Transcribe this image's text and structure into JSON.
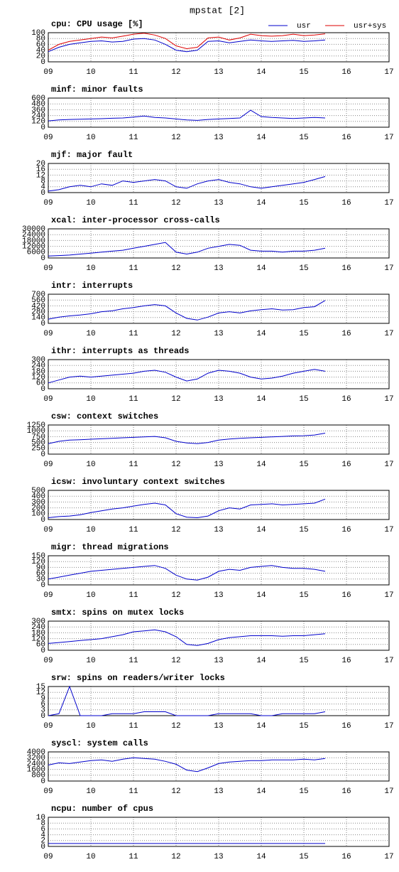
{
  "title": "mpstat [2]",
  "chart_data": [
    {
      "type": "line",
      "title": "cpu: CPU usage [%]",
      "legend": "top-right",
      "grid": true,
      "x": [
        9,
        9.25,
        9.5,
        9.75,
        10,
        10.25,
        10.5,
        10.75,
        11,
        11.25,
        11.5,
        11.75,
        12,
        12.25,
        12.5,
        12.75,
        13,
        13.25,
        13.5,
        13.75,
        14,
        14.25,
        14.5,
        14.75,
        15,
        15.25,
        15.5
      ],
      "series": [
        {
          "name": "usr",
          "color": "#0000cc",
          "values": [
            35,
            50,
            60,
            65,
            70,
            72,
            68,
            70,
            78,
            80,
            75,
            60,
            40,
            35,
            40,
            70,
            72,
            65,
            70,
            75,
            72,
            70,
            72,
            74,
            70,
            72,
            75
          ]
        },
        {
          "name": "usr+sys",
          "color": "#dd0000",
          "values": [
            40,
            60,
            70,
            75,
            80,
            85,
            82,
            88,
            95,
            98,
            92,
            80,
            55,
            45,
            50,
            82,
            85,
            75,
            82,
            95,
            90,
            88,
            90,
            95,
            90,
            92,
            96
          ]
        }
      ],
      "xlim": [
        9,
        17
      ],
      "xticks": [
        {
          "value": 9,
          "label": "09"
        },
        10,
        11,
        12,
        13,
        14,
        15,
        16,
        17
      ],
      "ylim": [
        0,
        100
      ],
      "yticks": [
        0,
        20,
        40,
        60,
        80,
        100
      ]
    },
    {
      "type": "line",
      "title": "minf: minor faults",
      "grid": true,
      "x": [
        9,
        9.25,
        9.5,
        9.75,
        10,
        10.25,
        10.5,
        10.75,
        11,
        11.25,
        11.5,
        11.75,
        12,
        12.25,
        12.5,
        12.75,
        13,
        13.25,
        13.5,
        13.75,
        14,
        14.25,
        14.5,
        14.75,
        15,
        15.25,
        15.5
      ],
      "series": [
        {
          "color": "#0000cc",
          "values": [
            130,
            150,
            160,
            165,
            170,
            175,
            185,
            190,
            210,
            230,
            200,
            190,
            170,
            150,
            140,
            160,
            170,
            180,
            190,
            350,
            220,
            200,
            190,
            180,
            190,
            200,
            190
          ]
        }
      ],
      "xlim": [
        9,
        17
      ],
      "xticks": [
        {
          "value": 9,
          "label": "09"
        },
        10,
        11,
        12,
        13,
        14,
        15,
        16,
        17
      ],
      "ylim": [
        0,
        600
      ],
      "yticks": [
        0,
        120,
        240,
        360,
        480,
        600
      ]
    },
    {
      "type": "line",
      "title": "mjf: major fault",
      "grid": true,
      "x": [
        9,
        9.25,
        9.5,
        9.75,
        10,
        10.25,
        10.5,
        10.75,
        11,
        11.25,
        11.5,
        11.75,
        12,
        12.25,
        12.5,
        12.75,
        13,
        13.25,
        13.5,
        13.75,
        14,
        14.25,
        14.5,
        14.75,
        15,
        15.25,
        15.5
      ],
      "series": [
        {
          "color": "#0000cc",
          "values": [
            1,
            2,
            4,
            5,
            4,
            6,
            5,
            8,
            7,
            8,
            9,
            8,
            4,
            3,
            6,
            8,
            9,
            7,
            6,
            4,
            3,
            4,
            5,
            6,
            7,
            9,
            11
          ]
        }
      ],
      "xlim": [
        9,
        17
      ],
      "xticks": [
        {
          "value": 9,
          "label": "09"
        },
        10,
        11,
        12,
        13,
        14,
        15,
        16,
        17
      ],
      "ylim": [
        0,
        20
      ],
      "yticks": [
        0,
        4,
        8,
        12,
        16,
        20
      ]
    },
    {
      "type": "line",
      "title": "xcal: inter-processor cross-calls",
      "grid": true,
      "x": [
        9,
        9.25,
        9.5,
        9.75,
        10,
        10.25,
        10.5,
        10.75,
        11,
        11.25,
        11.5,
        11.75,
        12,
        12.25,
        12.5,
        12.75,
        13,
        13.25,
        13.5,
        13.75,
        14,
        14.25,
        14.5,
        14.75,
        15,
        15.25,
        15.5
      ],
      "series": [
        {
          "color": "#0000cc",
          "values": [
            2000,
            2500,
            3000,
            4000,
            5000,
            6000,
            7000,
            8000,
            10000,
            12000,
            14000,
            16000,
            6000,
            4000,
            6000,
            10000,
            12000,
            14000,
            13000,
            8000,
            7000,
            7000,
            6000,
            7000,
            7000,
            8000,
            10000
          ]
        }
      ],
      "xlim": [
        9,
        17
      ],
      "xticks": [
        {
          "value": 9,
          "label": "09"
        },
        10,
        11,
        12,
        13,
        14,
        15,
        16,
        17
      ],
      "ylim": [
        0,
        30000
      ],
      "yticks": [
        0,
        6000,
        12000,
        18000,
        24000,
        30000
      ]
    },
    {
      "type": "line",
      "title": "intr: interrupts",
      "grid": true,
      "x": [
        9,
        9.25,
        9.5,
        9.75,
        10,
        10.25,
        10.5,
        10.75,
        11,
        11.25,
        11.5,
        11.75,
        12,
        12.25,
        12.5,
        12.75,
        13,
        13.25,
        13.5,
        13.75,
        14,
        14.25,
        14.5,
        14.75,
        15,
        15.25,
        15.5
      ],
      "series": [
        {
          "color": "#0000cc",
          "values": [
            100,
            150,
            180,
            200,
            230,
            280,
            300,
            350,
            380,
            420,
            450,
            420,
            250,
            120,
            80,
            150,
            250,
            280,
            250,
            300,
            330,
            350,
            320,
            330,
            380,
            400,
            550
          ]
        }
      ],
      "xlim": [
        9,
        17
      ],
      "xticks": [
        {
          "value": 9,
          "label": "09"
        },
        10,
        11,
        12,
        13,
        14,
        15,
        16,
        17
      ],
      "ylim": [
        0,
        700
      ],
      "yticks": [
        0,
        140,
        280,
        420,
        560,
        700
      ]
    },
    {
      "type": "line",
      "title": "ithr: interrupts as threads",
      "grid": true,
      "x": [
        9,
        9.25,
        9.5,
        9.75,
        10,
        10.25,
        10.5,
        10.75,
        11,
        11.25,
        11.5,
        11.75,
        12,
        12.25,
        12.5,
        12.75,
        13,
        13.25,
        13.5,
        13.75,
        14,
        14.25,
        14.5,
        14.75,
        15,
        15.25,
        15.5
      ],
      "series": [
        {
          "color": "#0000cc",
          "values": [
            60,
            90,
            120,
            130,
            120,
            130,
            140,
            150,
            160,
            180,
            190,
            170,
            120,
            80,
            100,
            160,
            190,
            180,
            160,
            120,
            100,
            110,
            130,
            160,
            180,
            200,
            180
          ]
        }
      ],
      "xlim": [
        9,
        17
      ],
      "xticks": [
        {
          "value": 9,
          "label": "09"
        },
        10,
        11,
        12,
        13,
        14,
        15,
        16,
        17
      ],
      "ylim": [
        0,
        300
      ],
      "yticks": [
        0,
        60,
        120,
        180,
        240,
        300
      ]
    },
    {
      "type": "line",
      "title": "csw: context switches",
      "grid": true,
      "x": [
        9,
        9.25,
        9.5,
        9.75,
        10,
        10.25,
        10.5,
        10.75,
        11,
        11.25,
        11.5,
        11.75,
        12,
        12.25,
        12.5,
        12.75,
        13,
        13.25,
        13.5,
        13.75,
        14,
        14.25,
        14.5,
        14.75,
        15,
        15.25,
        15.5
      ],
      "series": [
        {
          "color": "#0000cc",
          "values": [
            450,
            550,
            600,
            620,
            640,
            660,
            680,
            700,
            720,
            740,
            760,
            700,
            550,
            480,
            450,
            500,
            600,
            650,
            680,
            700,
            720,
            740,
            760,
            780,
            790,
            820,
            900
          ]
        }
      ],
      "xlim": [
        9,
        17
      ],
      "xticks": [
        {
          "value": 9,
          "label": "09"
        },
        10,
        11,
        12,
        13,
        14,
        15,
        16,
        17
      ],
      "ylim": [
        0,
        1250
      ],
      "yticks": [
        0,
        250,
        500,
        750,
        1000,
        1250
      ]
    },
    {
      "type": "line",
      "title": "icsw: involuntary context switches",
      "grid": true,
      "x": [
        9,
        9.25,
        9.5,
        9.75,
        10,
        10.25,
        10.5,
        10.75,
        11,
        11.25,
        11.5,
        11.75,
        12,
        12.25,
        12.5,
        12.75,
        13,
        13.25,
        13.5,
        13.75,
        14,
        14.25,
        14.5,
        14.75,
        15,
        15.25,
        15.5
      ],
      "series": [
        {
          "color": "#0000cc",
          "values": [
            30,
            50,
            60,
            80,
            120,
            150,
            180,
            200,
            230,
            260,
            280,
            250,
            100,
            40,
            30,
            60,
            150,
            200,
            180,
            250,
            260,
            270,
            250,
            260,
            270,
            280,
            350
          ]
        }
      ],
      "xlim": [
        9,
        17
      ],
      "xticks": [
        {
          "value": 9,
          "label": "09"
        },
        10,
        11,
        12,
        13,
        14,
        15,
        16,
        17
      ],
      "ylim": [
        0,
        500
      ],
      "yticks": [
        0,
        100,
        200,
        300,
        400,
        500
      ]
    },
    {
      "type": "line",
      "title": "migr: thread migrations",
      "grid": true,
      "x": [
        9,
        9.25,
        9.5,
        9.75,
        10,
        10.25,
        10.5,
        10.75,
        11,
        11.25,
        11.5,
        11.75,
        12,
        12.25,
        12.5,
        12.75,
        13,
        13.25,
        13.5,
        13.75,
        14,
        14.25,
        14.5,
        14.75,
        15,
        15.25,
        15.5
      ],
      "series": [
        {
          "color": "#0000cc",
          "values": [
            30,
            40,
            50,
            60,
            70,
            75,
            80,
            85,
            90,
            95,
            100,
            85,
            50,
            30,
            25,
            40,
            70,
            80,
            75,
            90,
            95,
            100,
            90,
            85,
            85,
            80,
            70
          ]
        }
      ],
      "xlim": [
        9,
        17
      ],
      "xticks": [
        {
          "value": 9,
          "label": "09"
        },
        10,
        11,
        12,
        13,
        14,
        15,
        16,
        17
      ],
      "ylim": [
        0,
        150
      ],
      "yticks": [
        0,
        30,
        60,
        90,
        120,
        150
      ]
    },
    {
      "type": "line",
      "title": "smtx: spins on mutex locks",
      "grid": true,
      "x": [
        9,
        9.25,
        9.5,
        9.75,
        10,
        10.25,
        10.5,
        10.75,
        11,
        11.25,
        11.5,
        11.75,
        12,
        12.25,
        12.5,
        12.75,
        13,
        13.25,
        13.5,
        13.75,
        14,
        14.25,
        14.5,
        14.75,
        15,
        15.25,
        15.5
      ],
      "series": [
        {
          "color": "#0000cc",
          "values": [
            70,
            80,
            90,
            100,
            110,
            120,
            140,
            160,
            190,
            200,
            210,
            190,
            140,
            60,
            50,
            70,
            110,
            130,
            140,
            150,
            150,
            150,
            145,
            150,
            150,
            160,
            170
          ]
        }
      ],
      "xlim": [
        9,
        17
      ],
      "xticks": [
        {
          "value": 9,
          "label": "09"
        },
        10,
        11,
        12,
        13,
        14,
        15,
        16,
        17
      ],
      "ylim": [
        0,
        300
      ],
      "yticks": [
        0,
        60,
        120,
        180,
        240,
        300
      ]
    },
    {
      "type": "line",
      "title": "srw: spins on readers/writer locks",
      "grid": true,
      "x": [
        9,
        9.25,
        9.5,
        9.75,
        10,
        10.25,
        10.5,
        10.75,
        11,
        11.25,
        11.5,
        11.75,
        12,
        12.25,
        12.5,
        12.75,
        13,
        13.25,
        13.5,
        13.75,
        14,
        14.25,
        14.5,
        14.75,
        15,
        15.25,
        15.5
      ],
      "series": [
        {
          "color": "#0000cc",
          "values": [
            0,
            1,
            15,
            0,
            0,
            0,
            1,
            1,
            1,
            2,
            2,
            2,
            0,
            0,
            0,
            0,
            1,
            1,
            1,
            1,
            0,
            0,
            1,
            1,
            1,
            1,
            2
          ]
        }
      ],
      "xlim": [
        9,
        17
      ],
      "xticks": [
        {
          "value": 9,
          "label": "09"
        },
        10,
        11,
        12,
        13,
        14,
        15,
        16,
        17
      ],
      "ylim": [
        0,
        15
      ],
      "yticks": [
        0,
        3,
        6,
        9,
        12,
        15
      ]
    },
    {
      "type": "line",
      "title": "syscl: system calls",
      "grid": true,
      "x": [
        9,
        9.25,
        9.5,
        9.75,
        10,
        10.25,
        10.5,
        10.75,
        11,
        11.25,
        11.5,
        11.75,
        12,
        12.25,
        12.5,
        12.75,
        13,
        13.25,
        13.5,
        13.75,
        14,
        14.25,
        14.5,
        14.75,
        15,
        15.25,
        15.5
      ],
      "series": [
        {
          "color": "#0000cc",
          "values": [
            2200,
            2500,
            2400,
            2600,
            2800,
            2900,
            2700,
            3000,
            3200,
            3100,
            3000,
            2700,
            2300,
            1500,
            1300,
            1800,
            2400,
            2600,
            2700,
            2800,
            2800,
            2900,
            2900,
            2900,
            3000,
            2900,
            3100
          ]
        }
      ],
      "xlim": [
        9,
        17
      ],
      "xticks": [
        {
          "value": 9,
          "label": "09"
        },
        10,
        11,
        12,
        13,
        14,
        15,
        16,
        17
      ],
      "ylim": [
        0,
        4000
      ],
      "yticks": [
        0,
        800,
        1600,
        2400,
        3200,
        4000
      ]
    },
    {
      "type": "line",
      "title": "ncpu: number of cpus",
      "grid": true,
      "x": [
        9,
        9.25,
        9.5,
        9.75,
        10,
        10.25,
        10.5,
        10.75,
        11,
        11.25,
        11.5,
        11.75,
        12,
        12.25,
        12.5,
        12.75,
        13,
        13.25,
        13.5,
        13.75,
        14,
        14.25,
        14.5,
        14.75,
        15,
        15.25,
        15.5
      ],
      "series": [
        {
          "color": "#0000cc",
          "values": [
            1,
            1,
            1,
            1,
            1,
            1,
            1,
            1,
            1,
            1,
            1,
            1,
            1,
            1,
            1,
            1,
            1,
            1,
            1,
            1,
            1,
            1,
            1,
            1,
            1,
            1,
            1
          ]
        }
      ],
      "xlim": [
        9,
        17
      ],
      "xticks": [
        {
          "value": 9,
          "label": "09"
        },
        10,
        11,
        12,
        13,
        14,
        15,
        16,
        17
      ],
      "ylim": [
        0,
        10
      ],
      "yticks": [
        0,
        2,
        4,
        6,
        8,
        10
      ]
    }
  ]
}
